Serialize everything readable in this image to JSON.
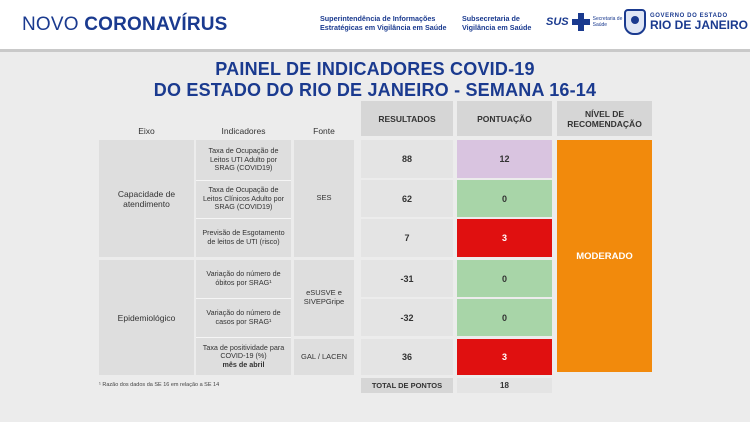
{
  "header": {
    "brand_light": "NOVO ",
    "brand_bold": "CORONAVÍRUS",
    "org1": "Superintendência de Informações Estratégicas em Vigilância em Saúde",
    "org2": "Subsecretaria de Vigilância em Saúde",
    "sus_label": "SUS",
    "sus_sub": "Secretaria de Saúde",
    "gov_line1": "GOVERNO DO ESTADO",
    "gov_line2": "RIO DE JANEIRO",
    "colors": {
      "brand": "#1a3a8f"
    }
  },
  "title": {
    "line1": "PAINEL DE INDICADORES COVID-19",
    "line2": "DO ESTADO DO RIO DE JANEIRO - SEMANA 16-14"
  },
  "columns": {
    "eixo": "Eixo",
    "indicadores": "Indicadores",
    "fonte": "Fonte",
    "resultados": "RESULTADOS",
    "pontuacao": "PONTUAÇÃO",
    "recomendacao": "NÍVEL DE RECOMENDAÇÃO"
  },
  "axes": [
    {
      "label": "Capacidade de atendimento"
    },
    {
      "label": "Epidemiológico"
    }
  ],
  "sources": [
    "SES",
    "eSUSVE e SIVEPGripe",
    "GAL / LACEN"
  ],
  "indicators": [
    {
      "label": "Taxa de Ocupação de Leitos UTI Adulto por SRAG (COVID19)",
      "result": "88",
      "score": "12",
      "score_color": "#d9c4e0"
    },
    {
      "label": "Taxa de Ocupação de Leitos Clínicos Adulto por SRAG (COVID19)",
      "result": "62",
      "score": "0",
      "score_color": "#a8d5a8"
    },
    {
      "label": "Previsão de Esgotamento de leitos de UTI (risco)",
      "result": "7",
      "score": "3",
      "score_color": "#e01010"
    },
    {
      "label": "Variação do número de óbitos por SRAG¹",
      "result": "-31",
      "score": "0",
      "score_color": "#a8d5a8"
    },
    {
      "label": "Variação do número de casos por SRAG¹",
      "result": "-32",
      "score": "0",
      "score_color": "#a8d5a8"
    },
    {
      "label": "Taxa de positividade para COVID-19 (%)",
      "label_bold": "mês de abril",
      "result": "36",
      "score": "3",
      "score_color": "#e01010"
    }
  ],
  "recommendation": {
    "label": "MODERADO",
    "color": "#f28a0c"
  },
  "total": {
    "label": "TOTAL DE PONTOS",
    "value": "18"
  },
  "footnote": "¹ Razão dos dados da SE 16 em relação a SE 14"
}
